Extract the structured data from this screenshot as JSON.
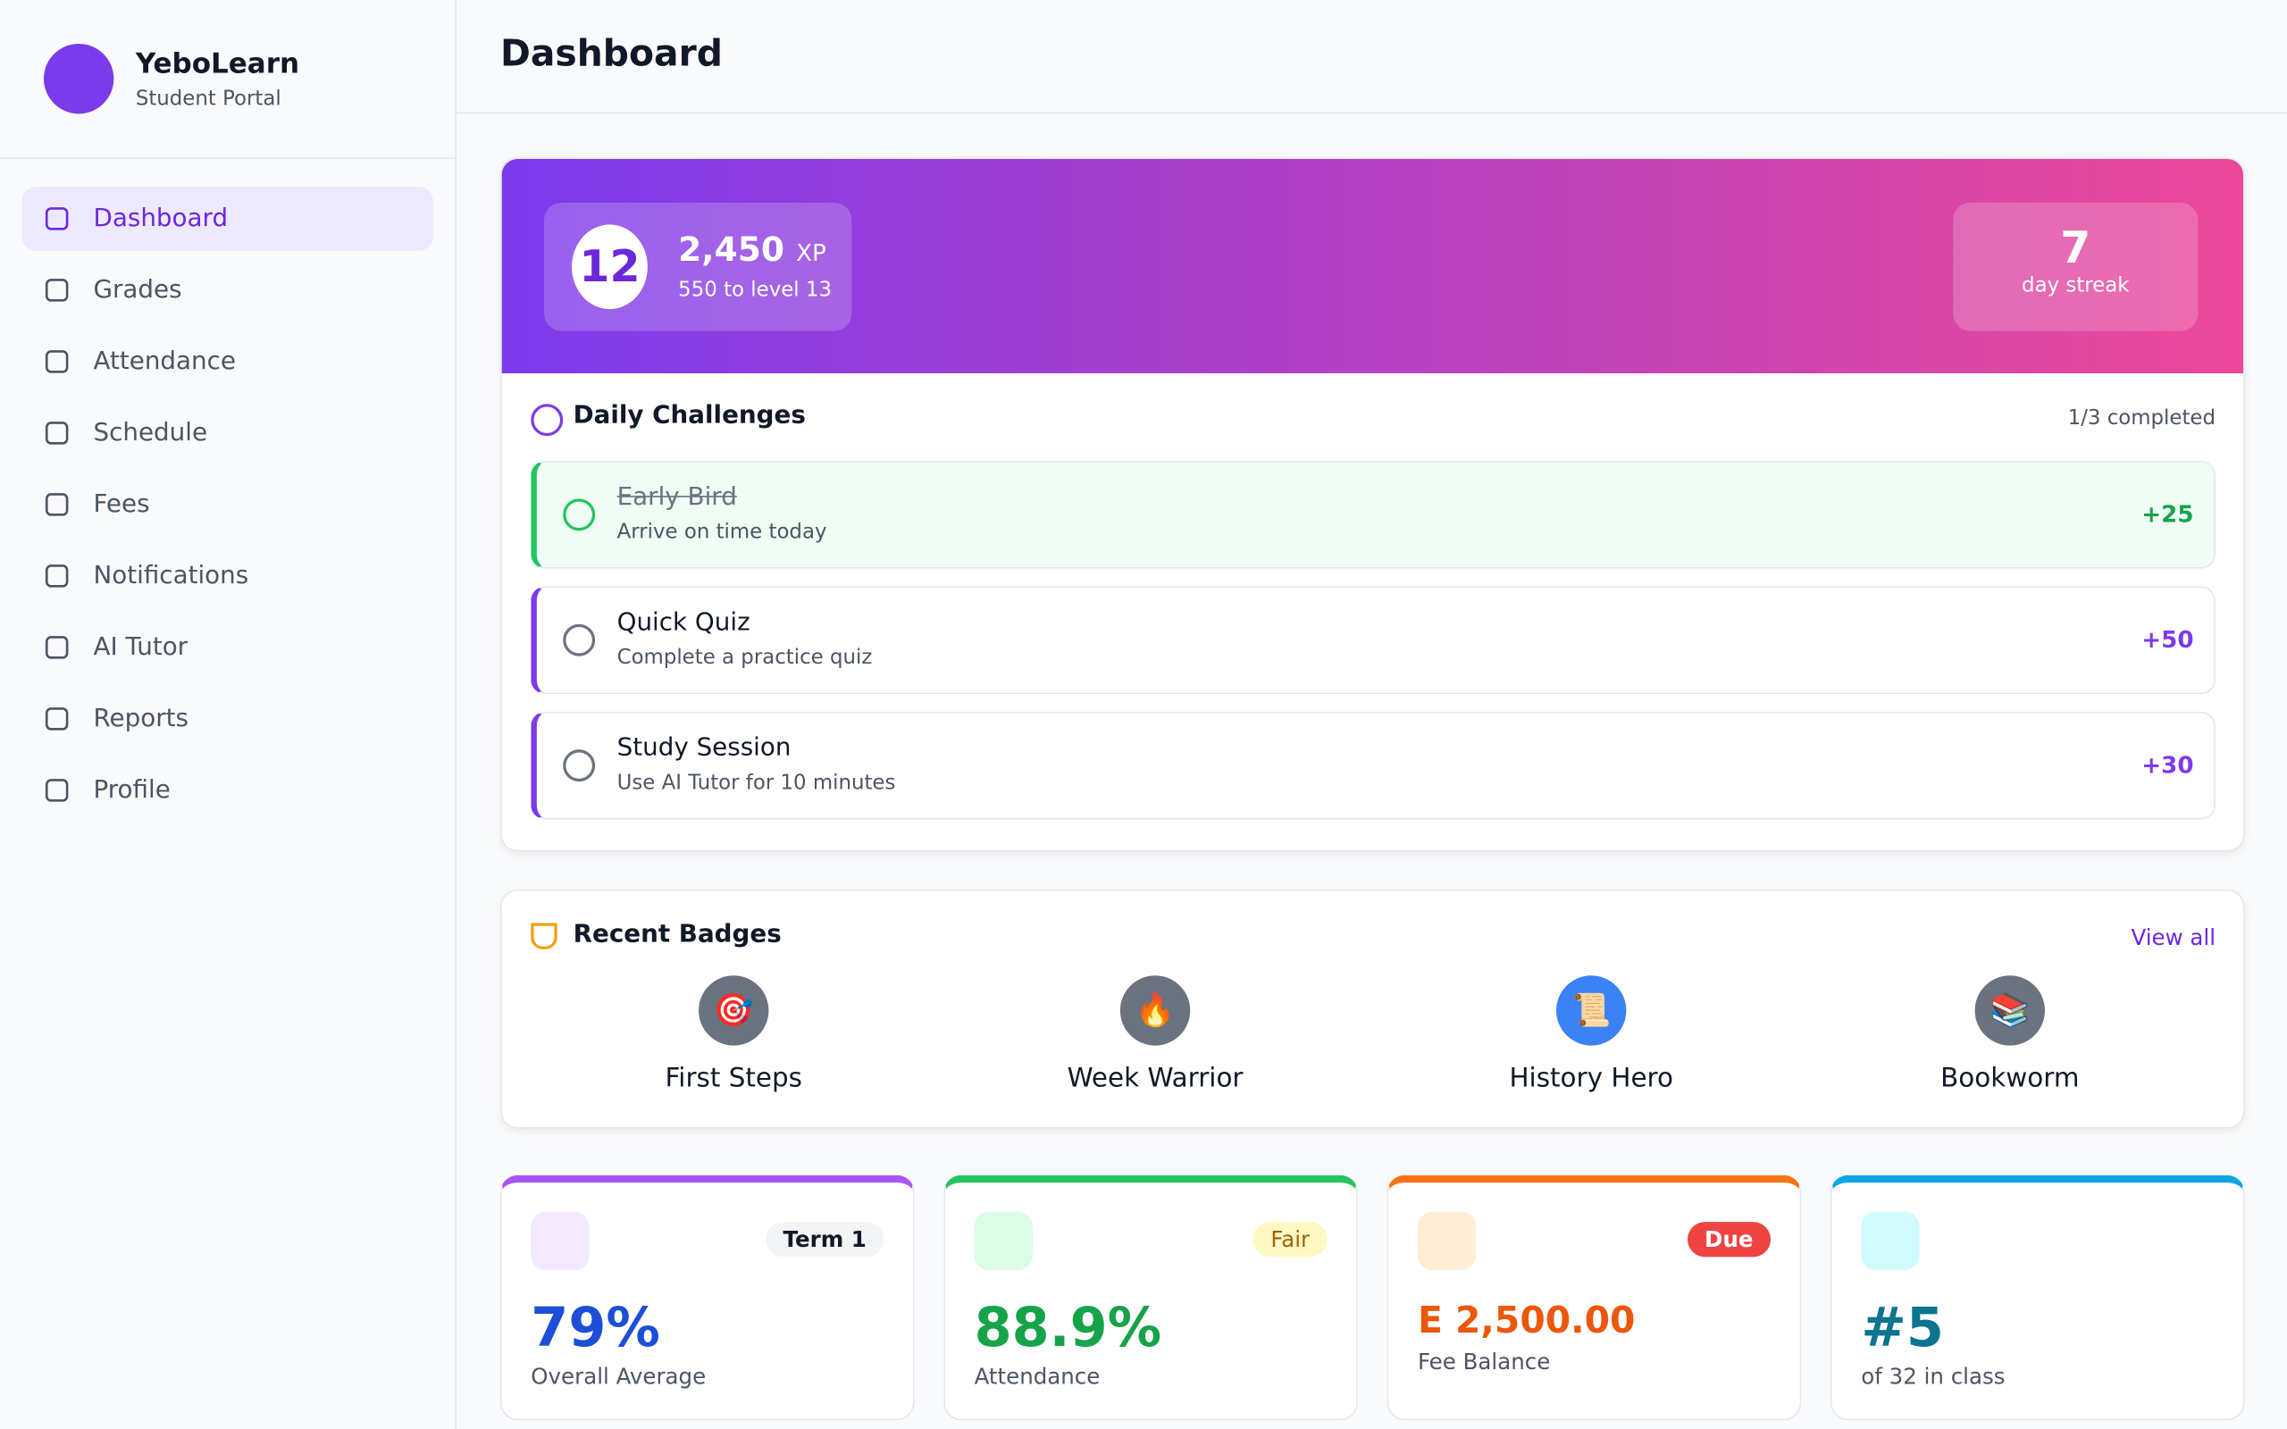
{
  "brand": {
    "name": "YeboLearn",
    "subtitle": "Student Portal"
  },
  "nav": [
    "Dashboard",
    "Grades",
    "Attendance",
    "Schedule",
    "Fees",
    "Notifications",
    "AI Tutor",
    "Reports",
    "Profile"
  ],
  "header": {
    "title": "Dashboard"
  },
  "hero": {
    "level": "12",
    "xp": "2,450",
    "xp_unit": "XP",
    "next": "550 to level 13",
    "streak": "7",
    "streak_label": "day streak"
  },
  "challenges": {
    "title": "Daily Challenges",
    "status": "1/3 completed",
    "items": [
      {
        "title": "Early Bird",
        "desc": "Arrive on time today",
        "reward": "+25",
        "done": true
      },
      {
        "title": "Quick Quiz",
        "desc": "Complete a practice quiz",
        "reward": "+50",
        "done": false
      },
      {
        "title": "Study Session",
        "desc": "Use AI Tutor for 10 minutes",
        "reward": "+30",
        "done": false
      }
    ]
  },
  "badges": {
    "title": "Recent Badges",
    "link": "View all",
    "items": [
      {
        "icon": "🎯",
        "name": "First Steps"
      },
      {
        "icon": "🔥",
        "name": "Week Warrior"
      },
      {
        "icon": "📜",
        "name": "History Hero"
      },
      {
        "icon": "📚",
        "name": "Bookworm"
      }
    ]
  },
  "stats": [
    {
      "tag": "Term 1",
      "value": "79%",
      "label": "Overall Average"
    },
    {
      "tag": "Fair",
      "value": "88.9%",
      "label": "Attendance"
    },
    {
      "tag": "Due",
      "value": "E 2,500.00",
      "label": "Fee Balance"
    },
    {
      "value": "#5",
      "label": "of 32 in class"
    }
  ]
}
